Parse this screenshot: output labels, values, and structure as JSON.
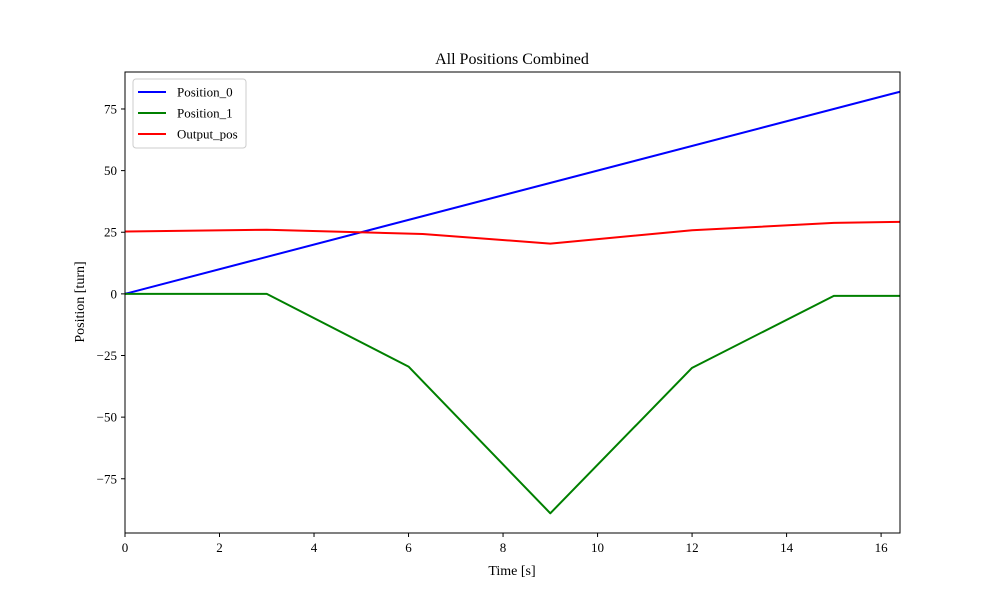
{
  "chart_data": {
    "type": "line",
    "title": "All Positions Combined",
    "xlabel": "Time [s]",
    "ylabel": "Position [turn]",
    "xlim": [
      0,
      16.4
    ],
    "ylim": [
      -97,
      90
    ],
    "xticks": [
      0,
      2,
      4,
      6,
      8,
      10,
      12,
      14,
      16
    ],
    "yticks": [
      -75,
      -50,
      -25,
      0,
      25,
      50,
      75
    ],
    "grid": false,
    "legend_position": "top-left",
    "series": [
      {
        "name": "Position_0",
        "color": "#0000ff",
        "x": [
          0,
          16.4
        ],
        "y": [
          0,
          82
        ]
      },
      {
        "name": "Position_1",
        "color": "#008000",
        "x": [
          0,
          3,
          6,
          9,
          12,
          15,
          16.4
        ],
        "y": [
          0,
          0,
          -29.5,
          -89,
          -30,
          -0.8,
          -0.8
        ]
      },
      {
        "name": "Output_pos",
        "color": "#ff0000",
        "x": [
          0,
          3,
          6.3,
          9,
          12,
          15,
          16.4
        ],
        "y": [
          25.3,
          26,
          24.3,
          20.4,
          25.8,
          28.8,
          29.2
        ]
      }
    ]
  }
}
